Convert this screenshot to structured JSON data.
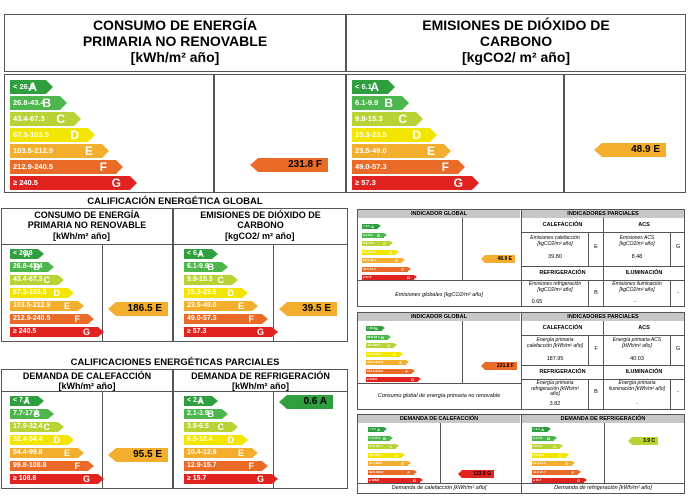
{
  "labels": {
    "top_left": [
      "< 26.8",
      "26.8-43.4",
      "43.4-67.3",
      "67.3-103.5",
      "103.5-212.9",
      "212.9-240.5",
      "≥ 240.5"
    ],
    "top_right": [
      "< 6.1",
      "6.1-9.9",
      "9.9-15.3",
      "15.3-23.5",
      "23.5-49.0",
      "49.0-57.3",
      "≥ 57.3"
    ],
    "global_left": [
      "< 26.8",
      "26.8-43.4",
      "43.4-67.3",
      "67.3-103.5",
      "103.5-212.9",
      "212.9-240.5",
      "≥ 240.5"
    ],
    "global_right": [
      "< 6.1",
      "6.1-9.9",
      "9.9-15.3",
      "15.3-23.5",
      "23.5-49.0",
      "49.0-57.3",
      "≥ 57.3"
    ],
    "heat": [
      "< 7.7",
      "7.7-17.9",
      "17.9-32.4",
      "32.4-54.4",
      "54.4-99.8",
      "99.8-108.8",
      "≥ 108.8"
    ],
    "cool": [
      "< 2.1",
      "2.1-3.9",
      "3.9-6.5",
      "6.5-10.4",
      "10.4-12.9",
      "12.9-15.7",
      "≥ 15.7"
    ],
    "rp_global": [
      "< 6.1",
      "6.1-9.9",
      "9.9-15.3",
      "15.3-23.5",
      "23.5-49.0",
      "49.0-57.3",
      "≥ 57.3"
    ],
    "rp_primary": [
      "< 26.8",
      "26.8-43.4",
      "43.4-67.3",
      "67.3-103.5",
      "103.5-212.9",
      "212.9-240.5",
      "≥ 240.5"
    ],
    "rp_heat": [
      "< 7.7",
      "7.7-17.9",
      "17.9-32.4",
      "32.4-54.4",
      "54.4-99.8",
      "99.8-108.8",
      "≥ 108.8"
    ],
    "rp_cool": [
      "< 2.1",
      "2.1-3.9",
      "3.9-6.5",
      "6.5-10.4",
      "10.4-12.9",
      "12.9-15.7",
      "≥ 15.7"
    ]
  },
  "letters": [
    "A",
    "B",
    "C",
    "D",
    "E",
    "F",
    "G"
  ],
  "colors": [
    "#2e9e3e",
    "#4db74d",
    "#b7d335",
    "#f2e500",
    "#f4ae2e",
    "#ea6b27",
    "#e1221f"
  ],
  "top": {
    "left_title1": "CONSUMO DE ENERGÍA",
    "left_title2": "PRIMARIA NO RENOVABLE",
    "left_unit": "[kWh/m² año]",
    "left_value": "231.8 F",
    "right_title1": "EMISIONES DE DIÓXIDO DE",
    "right_title2": "CARBONO",
    "right_unit": "[kgCO2/ m² año]",
    "right_value": "48.9 E"
  },
  "global": {
    "section_title": "CALIFICACIÓN ENERGÉTICA GLOBAL",
    "left_title1": "CONSUMO DE ENERGÍA",
    "left_title2": "PRIMARIA NO RENOVABLE",
    "left_unit": "[kWh/m² año]",
    "left_value": "186.5 E",
    "right_title1": "EMISIONES DE DIÓXIDO DE",
    "right_title2": "CARBONO",
    "right_unit": "[kgCO2/ m² año]",
    "right_value": "39.5 E"
  },
  "partial": {
    "section_title": "CALIFICACIONES ENERGÉTICAS PARCIALES",
    "heat_title": "DEMANDA DE CALEFACCIÓN",
    "heat_unit": "[kWh/m² año]",
    "heat_value": "95.5 E",
    "cool_title": "DEMANDA DE REFRIGERACIÓN",
    "cool_unit": "[kWh/m² año]",
    "cool_value": "0.6 A"
  },
  "report": {
    "global_indicator": "INDICADOR GLOBAL",
    "partial_indicators": "INDICADORES PARCIALES",
    "heating": "CALEFACCIÓN",
    "acs": "ACS",
    "cooling": "REFRIGERACIÓN",
    "lighting": "ILUMINACIÓN",
    "em_value": "48.9 E",
    "em_heat_label": "Emisiones calefacción [kgCO2/m² año]",
    "em_heat_value": "39.80",
    "em_heat_letter": "E",
    "em_acs_label": "Emisiones ACS [kgCO2/m² año]",
    "em_acs_value": "8.48",
    "em_acs_letter": "G",
    "em_cool_label": "Emisiones refrigeración [kgCO2/m² año]",
    "em_cool_value": "0.65",
    "em_cool_letter": "B",
    "em_light_label": "Emisiones iluminación [kgCO2/m² año]",
    "em_light_value": "-",
    "em_light_letter": "-",
    "em_footer": "Emisiones globales [kgCO2/m² año]",
    "pe_value": "231.8 F",
    "pe_heat_label": "Energía primaria calefacción [kWh/m² año]",
    "pe_heat_value": "187.95",
    "pe_heat_letter": "F",
    "pe_acs_label": "Energía primaria ACS [kWh/m² año]",
    "pe_acs_value": "40.03",
    "pe_acs_letter": "G",
    "pe_cool_label": "Energía primaria refrigeración [kWh/m² año]",
    "pe_cool_value": "3.82",
    "pe_cool_letter": "B",
    "pe_light_label": "Energía primaria iluminación [kWh/m² año]",
    "pe_light_value": "-",
    "pe_light_letter": "-",
    "pe_footer": "Consumo global de energía primaria no renovable",
    "dem_heat_title": "DEMANDA DE CALEFACCIÓN",
    "dem_cool_title": "DEMANDA DE REFRIGERACIÓN",
    "dem_heat_value": "123.8 G",
    "dem_cool_value": "3.9 C",
    "dem_heat_footer": "Demanda de calefacción [kWh/m² año]",
    "dem_cool_footer": "Demanda de refrigeración [kWh/m² año]"
  }
}
